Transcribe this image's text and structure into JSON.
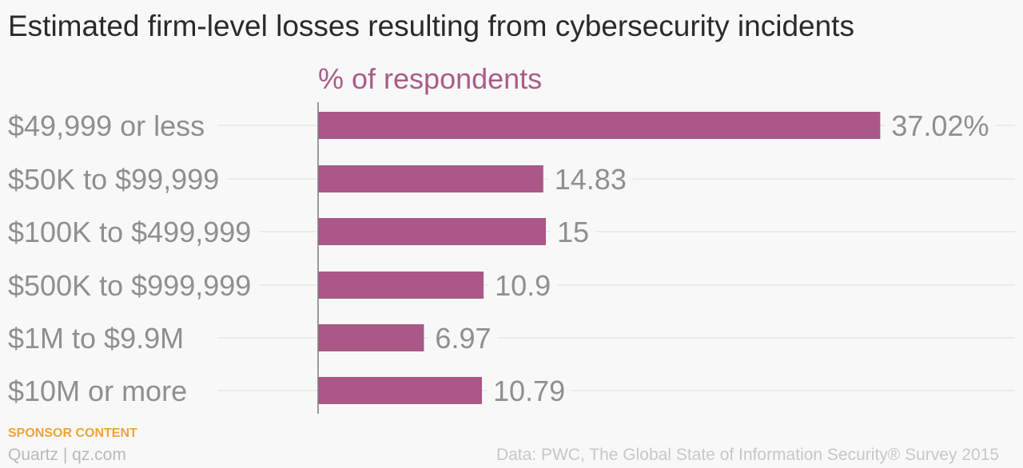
{
  "title": "Estimated firm-level losses resulting from cybersecurity incidents",
  "unit_label": "% of respondents",
  "sponsor": "SPONSOR CONTENT",
  "brand": "Quartz | qz.com",
  "source": "Data: PWC, The Global State of Information Security® Survey 2015",
  "colors": {
    "bar": "#a95888",
    "text": "#8f8f8f",
    "accent": "#a95c8a",
    "sponsor": "#f0a33a"
  },
  "chart_data": {
    "type": "bar",
    "orientation": "horizontal",
    "categories": [
      "$49,999 or less",
      "$50K to $99,999",
      "$100K to $499,999",
      "$500K to $999,999",
      "$1M to $9.9M",
      "$10M or more"
    ],
    "values": [
      37.02,
      14.83,
      15,
      10.9,
      6.97,
      10.79
    ],
    "value_labels": [
      "37.02%",
      "14.83",
      "15",
      "10.9",
      "6.97",
      "10.79"
    ],
    "xlabel": "% of respondents",
    "xlim": [
      0,
      40
    ],
    "grid": true,
    "legend": "none"
  }
}
